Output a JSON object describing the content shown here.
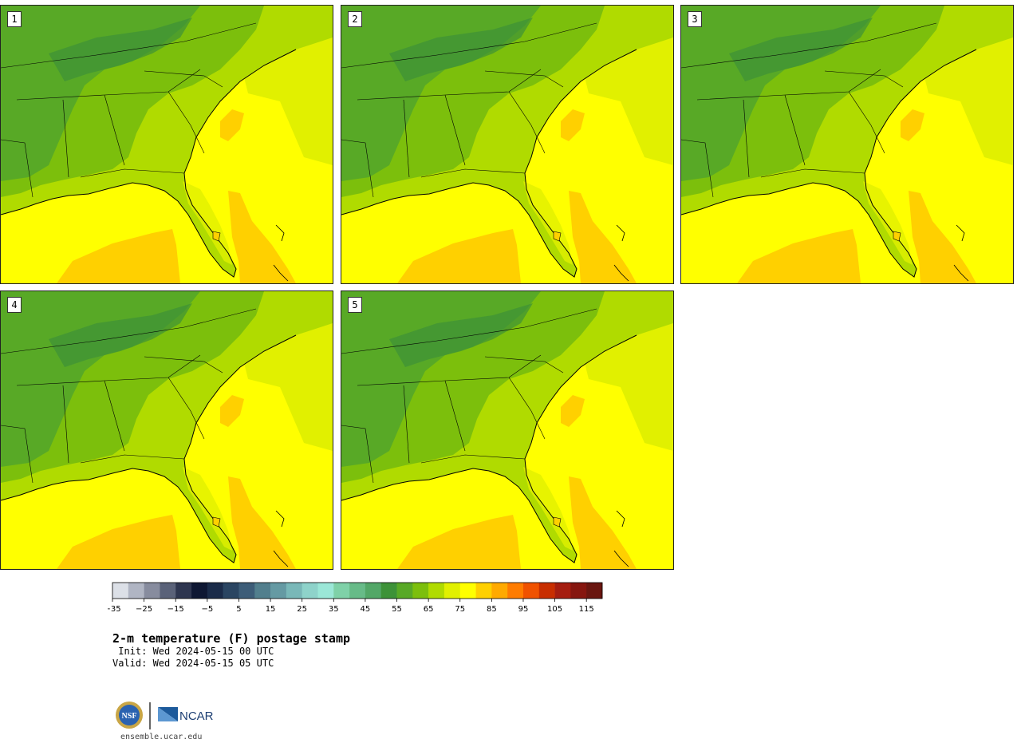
{
  "panels": [
    {
      "label": "1"
    },
    {
      "label": "2"
    },
    {
      "label": "3"
    },
    {
      "label": "4"
    },
    {
      "label": "5"
    }
  ],
  "colorbar": {
    "ticks": [
      "−35",
      "−25",
      "−15",
      "−5",
      "5",
      "15",
      "25",
      "35",
      "45",
      "55",
      "65",
      "75",
      "85",
      "95",
      "105",
      "115"
    ],
    "colors": [
      "#dce0e7",
      "#b0b5c3",
      "#878c9e",
      "#5a6279",
      "#2e3650",
      "#0e1733",
      "#1a2b49",
      "#2a4562",
      "#3d5d78",
      "#527f8d",
      "#659aa3",
      "#79b8b8",
      "#8ed3ca",
      "#9be7d7",
      "#7fd1a8",
      "#67bb88",
      "#52a767",
      "#3d9238",
      "#58a926",
      "#7cbf0c",
      "#b0db00",
      "#e1f000",
      "#ffff00",
      "#ffd000",
      "#ffaa00",
      "#ff7c00",
      "#f05200",
      "#c82e00",
      "#a51d10",
      "#86160f",
      "#6a1610"
    ]
  },
  "title": "2-m temperature (F) postage stamp",
  "init": " Init: Wed 2024-05-15 00 UTC",
  "valid": "Valid: Wed 2024-05-15 05 UTC",
  "logos": {
    "nsf": "NSF",
    "ncar": "NCAR"
  },
  "url": "ensemble.ucar.edu"
}
